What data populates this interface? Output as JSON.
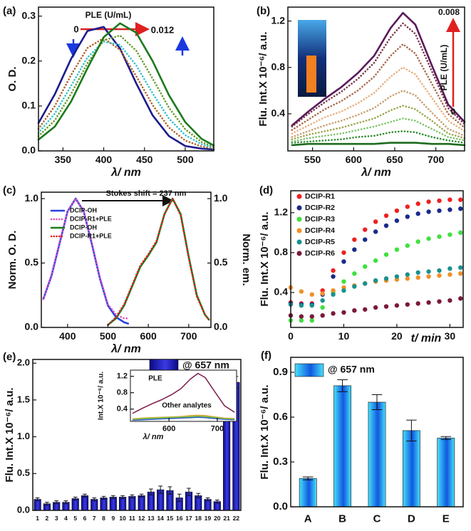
{
  "chart_data": [
    {
      "type": "line",
      "title": "(a)",
      "xlabel": "λ/ nm",
      "ylabel": "O. D.",
      "xlim": [
        320,
        535
      ],
      "xticks": [
        350,
        400,
        450,
        500
      ],
      "ylim": [
        0,
        0.32
      ],
      "yticks": [
        {
          "value": 0,
          "label": "0.0"
        },
        0.1,
        0.2,
        0.3
      ],
      "annotations": [
        "PLE (U/mL)",
        "0",
        "0.012"
      ],
      "x": [
        320,
        340,
        360,
        380,
        400,
        420,
        440,
        460,
        480,
        500,
        520,
        535
      ],
      "series": [
        {
          "color": "#1c1c8c",
          "style": "solid",
          "values": [
            0.062,
            0.126,
            0.205,
            0.267,
            0.276,
            0.228,
            0.15,
            0.079,
            0.033,
            0.011,
            0.005,
            0.003
          ]
        },
        {
          "color": "#b0642a",
          "style": "dotted",
          "values": [
            0.049,
            0.1,
            0.169,
            0.229,
            0.251,
            0.225,
            0.166,
            0.102,
            0.052,
            0.023,
            0.01,
            0.005
          ]
        },
        {
          "color": "#33c0d0",
          "style": "dotted",
          "values": [
            0.04,
            0.083,
            0.145,
            0.208,
            0.243,
            0.236,
            0.19,
            0.128,
            0.072,
            0.035,
            0.015,
            0.007
          ]
        },
        {
          "color": "#6a9a2a",
          "style": "dotted",
          "values": [
            0.033,
            0.068,
            0.127,
            0.195,
            0.246,
            0.257,
            0.223,
            0.161,
            0.096,
            0.048,
            0.02,
            0.009
          ]
        },
        {
          "color": "#1d7a1d",
          "style": "solid",
          "values": [
            0.025,
            0.054,
            0.11,
            0.184,
            0.253,
            0.284,
            0.263,
            0.2,
            0.124,
            0.064,
            0.027,
            0.012
          ]
        }
      ]
    },
    {
      "type": "line",
      "title": "(b)",
      "xlabel": "λ/ nm",
      "ylabel": "Flu. Int.X 10⁻⁶/ a.u.",
      "xlim": [
        520,
        735
      ],
      "xticks": [
        550,
        600,
        650,
        700
      ],
      "ylim": [
        0.08,
        1.32
      ],
      "yticks": [
        0.4,
        0.8,
        1.2
      ],
      "annotations": [
        "0.008",
        "PLE (U/mL)",
        "0"
      ],
      "x": [
        525,
        545,
        565,
        585,
        605,
        625,
        645,
        660,
        675,
        695,
        715,
        735
      ],
      "series": [
        {
          "color": "#1d6b1d",
          "style": "solid",
          "values": [
            0.13,
            0.14,
            0.14,
            0.14,
            0.14,
            0.14,
            0.15,
            0.15,
            0.15,
            0.14,
            0.14,
            0.13
          ]
        },
        {
          "color": "#2e8b2e",
          "style": "dotted",
          "values": [
            0.15,
            0.16,
            0.17,
            0.18,
            0.2,
            0.21,
            0.24,
            0.25,
            0.24,
            0.2,
            0.17,
            0.15
          ]
        },
        {
          "color": "#7cc46a",
          "style": "dotted",
          "values": [
            0.16,
            0.19,
            0.21,
            0.23,
            0.26,
            0.29,
            0.33,
            0.36,
            0.34,
            0.27,
            0.2,
            0.17
          ]
        },
        {
          "color": "#9aa64a",
          "style": "dotted",
          "values": [
            0.18,
            0.22,
            0.25,
            0.28,
            0.32,
            0.36,
            0.43,
            0.47,
            0.44,
            0.34,
            0.23,
            0.19
          ]
        },
        {
          "color": "#c8a070",
          "style": "dotted",
          "values": [
            0.2,
            0.25,
            0.3,
            0.34,
            0.39,
            0.45,
            0.55,
            0.6,
            0.56,
            0.41,
            0.27,
            0.21
          ]
        },
        {
          "color": "#e8b080",
          "style": "dotted",
          "values": [
            0.23,
            0.3,
            0.37,
            0.42,
            0.49,
            0.58,
            0.72,
            0.8,
            0.74,
            0.54,
            0.34,
            0.25
          ]
        },
        {
          "color": "#a86a4a",
          "style": "dotted",
          "values": [
            0.26,
            0.35,
            0.44,
            0.51,
            0.6,
            0.72,
            0.9,
            1.0,
            0.92,
            0.66,
            0.4,
            0.28
          ]
        },
        {
          "color": "#7a3a4a",
          "style": "dotted",
          "values": [
            0.29,
            0.4,
            0.5,
            0.59,
            0.7,
            0.84,
            1.06,
            1.18,
            1.09,
            0.77,
            0.45,
            0.31
          ]
        },
        {
          "color": "#5a1a5a",
          "style": "solid",
          "values": [
            0.3,
            0.42,
            0.53,
            0.63,
            0.75,
            0.9,
            1.14,
            1.27,
            1.17,
            0.82,
            0.48,
            0.33
          ]
        }
      ]
    },
    {
      "type": "line",
      "title": "(c)",
      "xlabel": "λ/ nm",
      "ylabel": "Norm. O. D.",
      "y2label": "Norm. em.",
      "xlim": [
        335,
        755
      ],
      "xticks": [
        400,
        500,
        600,
        700
      ],
      "ylim": [
        0,
        1.05
      ],
      "yticks": [
        {
          "value": 0,
          "label": "0.0"
        },
        0.5,
        {
          "value": 1,
          "label": "1.0"
        }
      ],
      "y2lim": [
        0,
        1.05
      ],
      "y2ticks": [
        {
          "value": 0,
          "label": "0.0"
        },
        0.5,
        {
          "value": 1,
          "label": "1.0"
        }
      ],
      "annotations": [
        "Stokes shift = 237 nm"
      ],
      "series": [
        {
          "name": "DCIP-OH",
          "color": "#2a40e0",
          "style": "solid",
          "x": [
            340,
            360,
            380,
            400,
            420,
            440,
            460,
            480,
            500,
            520,
            540,
            550
          ],
          "values": [
            0.22,
            0.4,
            0.65,
            0.9,
            1.0,
            0.9,
            0.65,
            0.38,
            0.17,
            0.08,
            0.04,
            0.03
          ]
        },
        {
          "name": "DCIP-R1+PLE",
          "color": "#e050c0",
          "style": "dotted",
          "x": [
            340,
            360,
            380,
            400,
            420,
            440,
            460,
            480,
            500,
            520,
            540,
            550
          ],
          "values": [
            0.22,
            0.41,
            0.66,
            0.9,
            1.0,
            0.9,
            0.66,
            0.39,
            0.18,
            0.1,
            0.07,
            0.07
          ]
        },
        {
          "name": "DCIP-OH",
          "color": "#1d7a1d",
          "style": "solid",
          "axis": "y2",
          "x": [
            500,
            520,
            540,
            560,
            580,
            600,
            620,
            640,
            660,
            680,
            700,
            720,
            740,
            750
          ],
          "values": [
            0.02,
            0.07,
            0.17,
            0.32,
            0.47,
            0.56,
            0.66,
            0.88,
            1.0,
            0.88,
            0.55,
            0.25,
            0.1,
            0.06
          ]
        },
        {
          "name": "DCIP-R1+PLE",
          "color": "#e02020",
          "style": "dotted",
          "axis": "y2",
          "x": [
            500,
            520,
            540,
            560,
            580,
            600,
            620,
            640,
            660,
            680,
            700,
            720,
            740,
            750
          ],
          "values": [
            0.02,
            0.08,
            0.18,
            0.33,
            0.48,
            0.57,
            0.67,
            0.88,
            1.0,
            0.87,
            0.54,
            0.24,
            0.1,
            0.06
          ]
        }
      ]
    },
    {
      "type": "scatter",
      "title": "(d)",
      "xlabel": "t/ min",
      "ylabel": "Flu. Int.X 10⁻⁶/ a.u.",
      "xlim": [
        0,
        32.5
      ],
      "xticks": [
        0,
        10,
        20,
        30
      ],
      "ylim": [
        0.05,
        1.42
      ],
      "yticks": [
        0.4,
        0.8,
        1.2
      ],
      "x": [
        0,
        2,
        4,
        6,
        8,
        10,
        12,
        14,
        16,
        18,
        20,
        22,
        24,
        26,
        28,
        30,
        32
      ],
      "series": [
        {
          "name": "DCIP-R1",
          "color": "#f02020",
          "values": [
            0.3,
            0.29,
            0.29,
            0.42,
            0.62,
            0.8,
            0.93,
            1.03,
            1.11,
            1.17,
            1.22,
            1.26,
            1.29,
            1.31,
            1.32,
            1.33,
            1.33
          ]
        },
        {
          "name": "DCIP-R2",
          "color": "#1a2a8a",
          "values": [
            0.29,
            0.28,
            0.28,
            0.38,
            0.56,
            0.71,
            0.83,
            0.93,
            1.01,
            1.07,
            1.12,
            1.16,
            1.19,
            1.21,
            1.22,
            1.23,
            1.24
          ]
        },
        {
          "name": "DCIP-R3",
          "color": "#40e040",
          "values": [
            0.12,
            0.12,
            0.12,
            0.25,
            0.4,
            0.51,
            0.59,
            0.66,
            0.72,
            0.78,
            0.83,
            0.87,
            0.91,
            0.94,
            0.96,
            0.98,
            1.0
          ]
        },
        {
          "name": "DCIP-R4",
          "color": "#f0902a",
          "values": [
            0.45,
            0.41,
            0.38,
            0.39,
            0.42,
            0.45,
            0.47,
            0.49,
            0.51,
            0.52,
            0.53,
            0.54,
            0.55,
            0.56,
            0.57,
            0.58,
            0.59
          ]
        },
        {
          "name": "DCIP-R5",
          "color": "#1a9090",
          "values": [
            0.28,
            0.27,
            0.27,
            0.32,
            0.38,
            0.42,
            0.46,
            0.49,
            0.52,
            0.54,
            0.56,
            0.58,
            0.6,
            0.61,
            0.62,
            0.64,
            0.65
          ]
        },
        {
          "name": "DCIP-R6",
          "color": "#7a1a3a",
          "values": [
            0.17,
            0.16,
            0.16,
            0.17,
            0.19,
            0.2,
            0.22,
            0.23,
            0.25,
            0.26,
            0.27,
            0.28,
            0.29,
            0.3,
            0.31,
            0.32,
            0.34
          ]
        }
      ]
    },
    {
      "type": "bar",
      "title": "(e)",
      "ylabel": "Flu. Int.X 10⁻⁶/ a.u.",
      "ylim": [
        0,
        2.05
      ],
      "yticks": [
        {
          "value": 0,
          "label": "0.0"
        },
        0.5,
        {
          "value": 1,
          "label": "1.0"
        },
        1.5,
        {
          "value": 2,
          "label": "2.0"
        }
      ],
      "categories": [
        "1",
        "2",
        "3",
        "4",
        "5",
        "6",
        "7",
        "8",
        "9",
        "10",
        "11",
        "12",
        "13",
        "14",
        "15",
        "16",
        "17",
        "18",
        "19",
        "20",
        "21",
        "22"
      ],
      "series": [
        {
          "name": "@ 657 nm",
          "color": "#0a0a80",
          "gradient_to": "#3a3ae8",
          "values": [
            0.15,
            0.09,
            0.11,
            0.11,
            0.16,
            0.2,
            0.15,
            0.17,
            0.18,
            0.18,
            0.19,
            0.2,
            0.25,
            0.28,
            0.27,
            0.17,
            0.25,
            0.2,
            0.15,
            0.12,
            1.3,
            1.74
          ],
          "errors": [
            0.02,
            0.02,
            0.02,
            0.02,
            0.02,
            0.02,
            0.02,
            0.02,
            0.02,
            0.02,
            0.02,
            0.02,
            0.04,
            0.05,
            0.05,
            0.05,
            0.05,
            0.03,
            0.02,
            0.02,
            0.02,
            0.08
          ]
        }
      ]
    },
    {
      "type": "line",
      "xlabel": "λ/ nm",
      "ylabel": "Int.X 10⁻⁶/ a.u.",
      "xlim": [
        520,
        740
      ],
      "xticks": [
        600,
        700
      ],
      "ylim": [
        0.1,
        1.35
      ],
      "yticks": [
        0.4,
        0.8,
        1.2
      ],
      "annotations": [
        "PLE",
        "Other analytes"
      ],
      "x": [
        525,
        545,
        565,
        585,
        605,
        625,
        645,
        660,
        675,
        695,
        715,
        735
      ],
      "series": [
        {
          "color": "#e0a030",
          "style": "solid",
          "values": [
            0.16,
            0.18,
            0.19,
            0.2,
            0.21,
            0.22,
            0.24,
            0.25,
            0.24,
            0.21,
            0.18,
            0.17
          ]
        },
        {
          "color": "#30b0a0",
          "style": "solid",
          "values": [
            0.14,
            0.15,
            0.16,
            0.17,
            0.18,
            0.19,
            0.21,
            0.22,
            0.21,
            0.18,
            0.16,
            0.15
          ]
        },
        {
          "color": "#3060c0",
          "style": "solid",
          "values": [
            0.13,
            0.14,
            0.15,
            0.16,
            0.17,
            0.18,
            0.19,
            0.2,
            0.19,
            0.17,
            0.15,
            0.14
          ]
        },
        {
          "color": "#90c040",
          "style": "solid",
          "values": [
            0.15,
            0.17,
            0.18,
            0.19,
            0.2,
            0.21,
            0.22,
            0.23,
            0.22,
            0.2,
            0.17,
            0.16
          ]
        },
        {
          "color": "#7a1a4a",
          "style": "solid",
          "values": [
            0.3,
            0.42,
            0.53,
            0.63,
            0.75,
            0.9,
            1.14,
            1.27,
            1.17,
            0.82,
            0.48,
            0.33
          ]
        }
      ]
    },
    {
      "type": "bar",
      "title": "(f)",
      "ylabel": "Flu. Int.X 10⁻⁶/ a.u.",
      "ylim": [
        0,
        1.0
      ],
      "yticks": [
        {
          "value": 0,
          "label": "0.0"
        },
        0.3,
        0.6,
        0.9
      ],
      "categories": [
        "A",
        "B",
        "C",
        "D",
        "E"
      ],
      "series": [
        {
          "name": "@ 657 nm",
          "color": "#48e0fa",
          "gradient_to": "#1058e0",
          "values": [
            0.19,
            0.81,
            0.7,
            0.51,
            0.46
          ],
          "errors": [
            0.01,
            0.04,
            0.05,
            0.07,
            0.01
          ]
        }
      ]
    }
  ]
}
